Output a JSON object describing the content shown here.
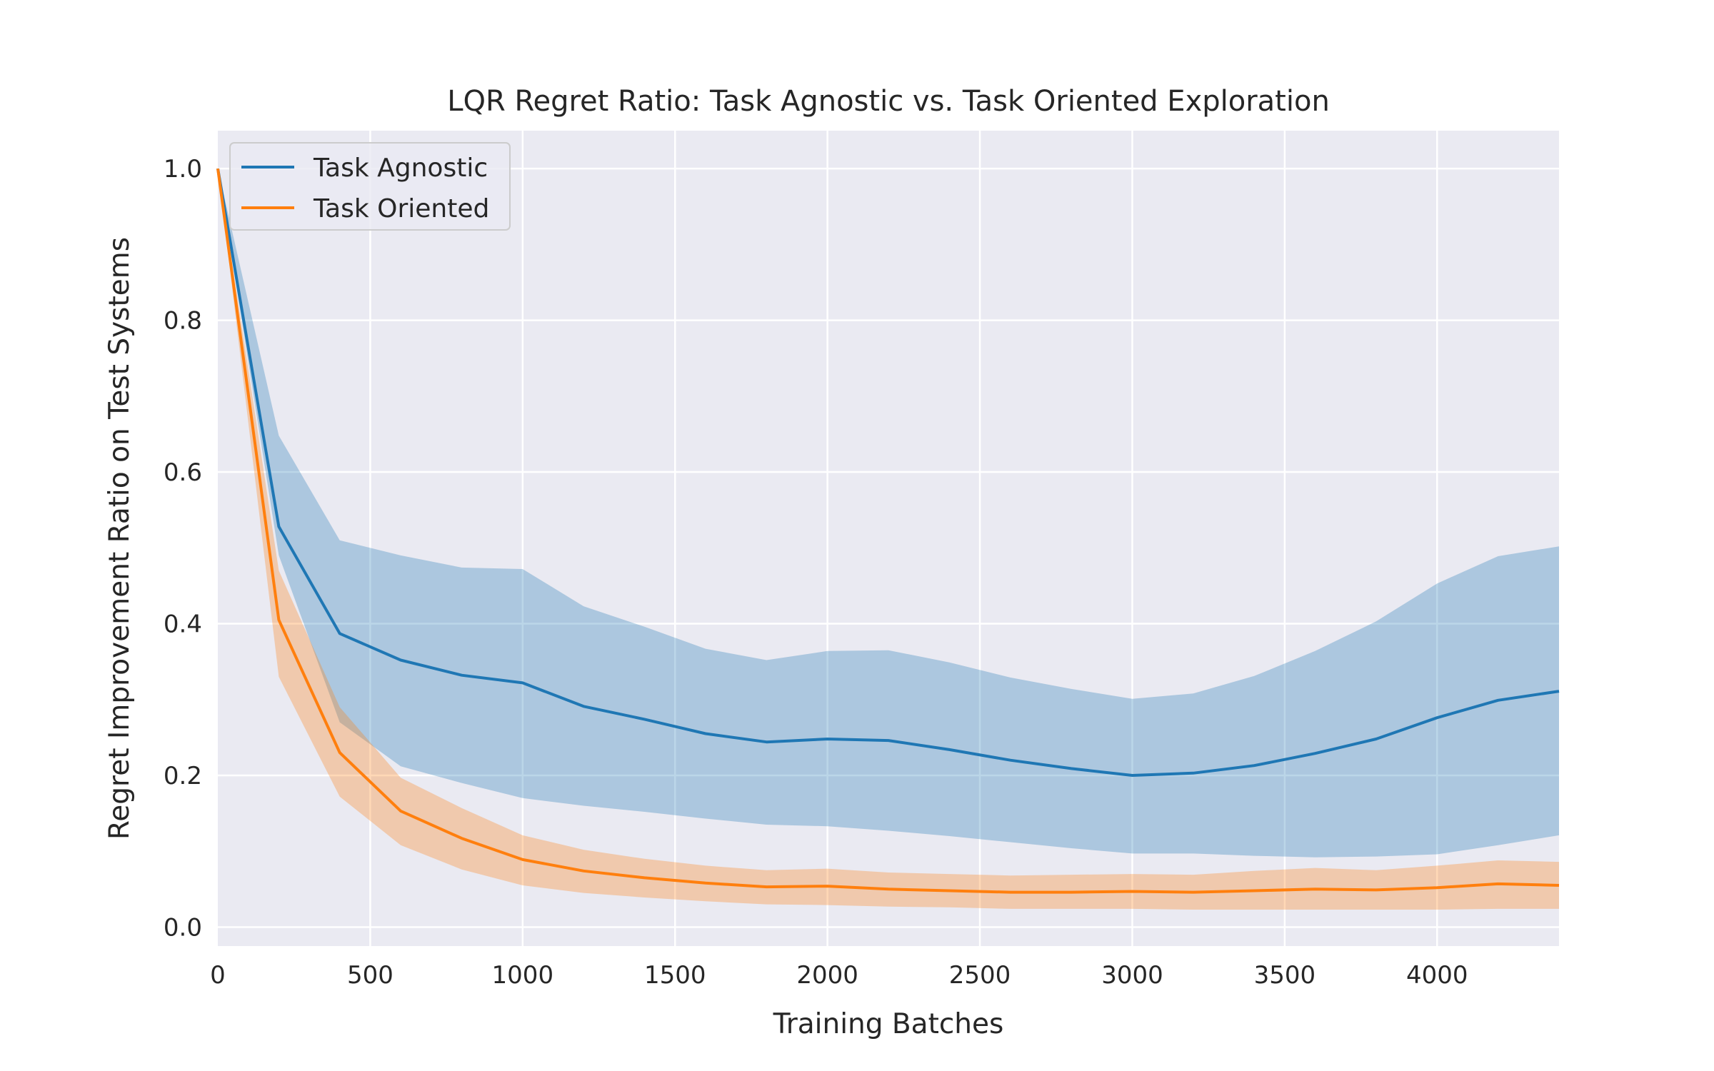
{
  "chart_data": {
    "type": "line",
    "title": "LQR Regret Ratio: Task Agnostic vs. Task Oriented Exploration",
    "xlabel": "Training Batches",
    "ylabel": "Regret Improvement Ratio on Test Systems",
    "xlim": [
      0,
      4400
    ],
    "ylim": [
      -0.025,
      1.05
    ],
    "xticks": [
      0,
      500,
      1000,
      1500,
      2000,
      2500,
      3000,
      3500,
      4000
    ],
    "yticks": [
      0.0,
      0.2,
      0.4,
      0.6,
      0.8,
      1.0
    ],
    "xtick_labels": [
      "0",
      "500",
      "1000",
      "1500",
      "2000",
      "2500",
      "3000",
      "3500",
      "4000"
    ],
    "ytick_labels": [
      "0.0",
      "0.2",
      "0.4",
      "0.6",
      "0.8",
      "1.0"
    ],
    "grid": true,
    "legend_position": "top-left",
    "x": [
      0,
      200,
      400,
      600,
      800,
      1000,
      1200,
      1400,
      1600,
      1800,
      2000,
      2200,
      2400,
      2600,
      2800,
      3000,
      3200,
      3400,
      3600,
      3800,
      4000,
      4200,
      4400
    ],
    "series": [
      {
        "name": "Task Agnostic",
        "color": "#1f77b4",
        "values": [
          1.0,
          0.528,
          0.387,
          0.352,
          0.332,
          0.322,
          0.291,
          0.274,
          0.255,
          0.244,
          0.248,
          0.246,
          0.234,
          0.22,
          0.209,
          0.2,
          0.203,
          0.213,
          0.229,
          0.248,
          0.276,
          0.299,
          0.311
        ],
        "upper": [
          1.0,
          0.648,
          0.51,
          0.49,
          0.474,
          0.472,
          0.423,
          0.396,
          0.367,
          0.352,
          0.364,
          0.365,
          0.349,
          0.329,
          0.314,
          0.301,
          0.308,
          0.331,
          0.364,
          0.403,
          0.453,
          0.489,
          0.502
        ],
        "lower": [
          1.0,
          0.49,
          0.27,
          0.212,
          0.19,
          0.17,
          0.16,
          0.152,
          0.143,
          0.135,
          0.133,
          0.127,
          0.12,
          0.112,
          0.104,
          0.097,
          0.097,
          0.094,
          0.092,
          0.093,
          0.096,
          0.108,
          0.121
        ]
      },
      {
        "name": "Task Oriented",
        "color": "#ff7f0e",
        "values": [
          1.0,
          0.405,
          0.23,
          0.153,
          0.117,
          0.089,
          0.074,
          0.065,
          0.058,
          0.053,
          0.054,
          0.05,
          0.048,
          0.046,
          0.046,
          0.047,
          0.046,
          0.048,
          0.05,
          0.049,
          0.052,
          0.057,
          0.055
        ],
        "upper": [
          1.0,
          0.47,
          0.29,
          0.197,
          0.157,
          0.121,
          0.102,
          0.09,
          0.081,
          0.075,
          0.077,
          0.072,
          0.07,
          0.068,
          0.069,
          0.07,
          0.069,
          0.074,
          0.078,
          0.075,
          0.081,
          0.088,
          0.086
        ],
        "lower": [
          1.0,
          0.33,
          0.172,
          0.108,
          0.076,
          0.055,
          0.045,
          0.039,
          0.034,
          0.03,
          0.029,
          0.027,
          0.026,
          0.024,
          0.024,
          0.024,
          0.023,
          0.023,
          0.023,
          0.023,
          0.023,
          0.024,
          0.024
        ]
      }
    ]
  }
}
